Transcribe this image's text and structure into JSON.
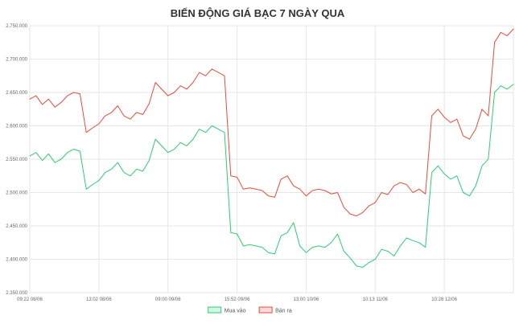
{
  "chart_data": {
    "type": "line",
    "title": "BIẾN ĐỘNG GIÁ BẠC 7 NGÀY QUA",
    "xlabel": "",
    "ylabel": "",
    "ylim": [
      2350000,
      2750000
    ],
    "yticks": [
      2350000,
      2400000,
      2450000,
      2500000,
      2550000,
      2600000,
      2650000,
      2700000,
      2750000
    ],
    "ytick_labels": [
      "2.350.000",
      "2.400.000",
      "2.450.000",
      "2.500.000",
      "2.550.000",
      "2.600.000",
      "2.650.000",
      "2.700.000",
      "2.750.000"
    ],
    "x_tick_labels": [
      "09:22 08/06",
      "13:02 08/06",
      "09:00 09/06",
      "15:52 09/06",
      "13:00 10/06",
      "10:13 11/06",
      "10:28 12/06"
    ],
    "grid": true,
    "legend_position": "bottom",
    "series": [
      {
        "name": "Mua vào",
        "color": "#2ecc71",
        "fill": "#d5f5e3",
        "values": [
          2555000,
          2560000,
          2548000,
          2558000,
          2545000,
          2550000,
          2560000,
          2565000,
          2562000,
          2505000,
          2512000,
          2518000,
          2530000,
          2535000,
          2545000,
          2530000,
          2525000,
          2535000,
          2532000,
          2548000,
          2580000,
          2570000,
          2560000,
          2565000,
          2575000,
          2570000,
          2580000,
          2595000,
          2590000,
          2600000,
          2595000,
          2590000,
          2440000,
          2438000,
          2420000,
          2422000,
          2420000,
          2418000,
          2410000,
          2408000,
          2435000,
          2440000,
          2455000,
          2420000,
          2410000,
          2418000,
          2420000,
          2418000,
          2425000,
          2438000,
          2412000,
          2402000,
          2390000,
          2388000,
          2395000,
          2400000,
          2415000,
          2412000,
          2405000,
          2420000,
          2432000,
          2428000,
          2425000,
          2418000,
          2530000,
          2540000,
          2528000,
          2520000,
          2525000,
          2500000,
          2495000,
          2510000,
          2540000,
          2550000,
          2650000,
          2660000,
          2655000,
          2662000
        ]
      },
      {
        "name": "Bán ra",
        "color": "#e74c3c",
        "fill": "#fadbd8",
        "values": [
          2640000,
          2645000,
          2632000,
          2640000,
          2628000,
          2635000,
          2645000,
          2650000,
          2648000,
          2590000,
          2597000,
          2603000,
          2615000,
          2620000,
          2630000,
          2615000,
          2610000,
          2620000,
          2617000,
          2633000,
          2665000,
          2655000,
          2645000,
          2650000,
          2660000,
          2655000,
          2665000,
          2680000,
          2675000,
          2685000,
          2680000,
          2675000,
          2525000,
          2523000,
          2505000,
          2507000,
          2505000,
          2503000,
          2495000,
          2493000,
          2520000,
          2525000,
          2510000,
          2505000,
          2495000,
          2503000,
          2505000,
          2503000,
          2498000,
          2500000,
          2478000,
          2468000,
          2465000,
          2470000,
          2480000,
          2485000,
          2500000,
          2497000,
          2510000,
          2515000,
          2512000,
          2500000,
          2505000,
          2498000,
          2615000,
          2625000,
          2613000,
          2605000,
          2610000,
          2585000,
          2580000,
          2595000,
          2625000,
          2615000,
          2725000,
          2740000,
          2735000,
          2745000
        ]
      }
    ]
  }
}
